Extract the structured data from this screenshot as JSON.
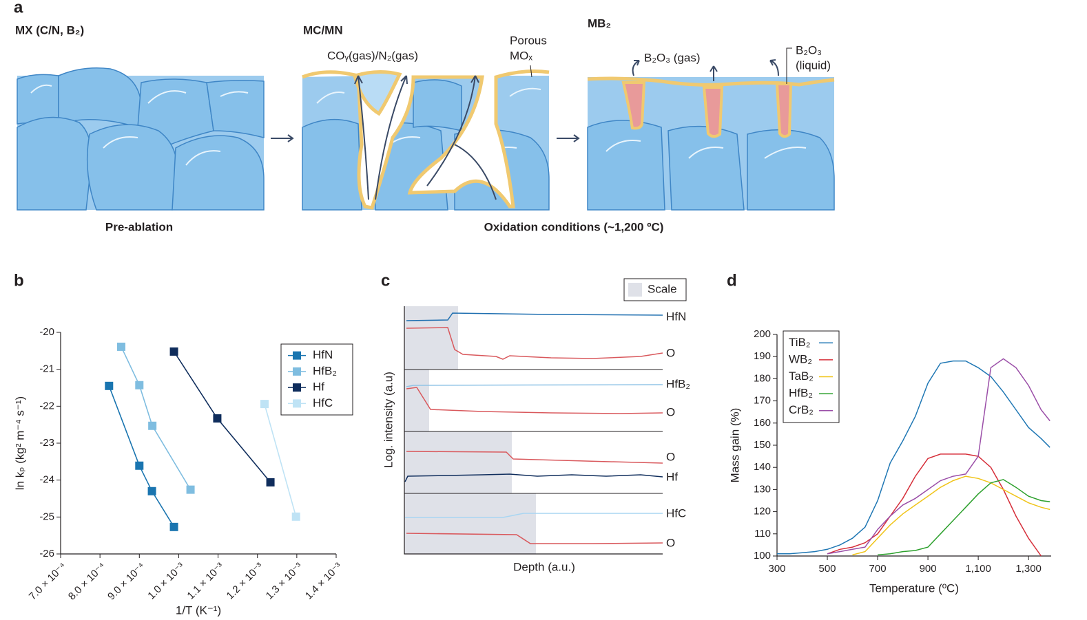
{
  "panel_a": {
    "panel_label": "a",
    "left_title": "MX (C/N, B₂)",
    "middle_title": "MC/MN",
    "right_title": "MB₂",
    "gas_label": "COᵧ(gas)/N₂(gas)",
    "porous_label": [
      "Porous",
      "MOₓ"
    ],
    "boron_gas_label": "B₂O₃ (gas)",
    "boron_liquid_label": [
      "B₂O₃",
      "(liquid)"
    ],
    "pre_label": "Pre-ablation",
    "oxidation_label": "Oxidation conditions (~1,200 ºC)"
  },
  "panel_c": {
    "panel_label": "c",
    "legend": "Scale",
    "y_label": "Log. intensity (a.u)",
    "x_label": "Depth (a.u.)",
    "line_labels": [
      "HfN",
      "O",
      "HfB₂",
      "O",
      "O",
      "Hf",
      "HfC",
      "O"
    ]
  },
  "chart_data": [
    {
      "type": "line",
      "panel_label": "b",
      "markers": true,
      "x_label": "1/T (K⁻¹)",
      "y_label": "ln kₚ (kg² m⁻⁴ s⁻¹)",
      "xlim": [
        0.0007,
        0.0014
      ],
      "ylim": [
        -26,
        -20
      ],
      "xticks": [
        {
          "value": 0.0007,
          "label": "7.0 × 10⁻⁴"
        },
        {
          "value": 0.0008,
          "label": "8.0 × 10⁻⁴"
        },
        {
          "value": 0.0009,
          "label": "9.0 × 10⁻⁴"
        },
        {
          "value": 0.001,
          "label": "1.0 × 10⁻³"
        },
        {
          "value": 0.0011,
          "label": "1.1 × 10⁻³"
        },
        {
          "value": 0.0012,
          "label": "1.2 × 10⁻³"
        },
        {
          "value": 0.0013,
          "label": "1.3 × 10⁻³"
        },
        {
          "value": 0.0014,
          "label": "1.4 × 10⁻³"
        }
      ],
      "yticks": [
        -20,
        -21,
        -22,
        -23,
        -24,
        -25,
        -26
      ],
      "legend": "upper right",
      "series": [
        {
          "name": "HfN",
          "color": "#1a75b0",
          "x": [
            0.000823,
            0.0009,
            0.000932,
            0.000988
          ],
          "values": [
            -21.45,
            -23.61,
            -24.3,
            -25.27
          ]
        },
        {
          "name": "HfB₂",
          "color": "#7fbde0",
          "x": [
            0.000854,
            0.0009,
            0.000933,
            0.00103
          ],
          "values": [
            -20.39,
            -21.43,
            -22.53,
            -24.26
          ]
        },
        {
          "name": "Hf",
          "color": "#0f2d5c",
          "x": [
            0.000988,
            0.001098,
            0.001233
          ],
          "values": [
            -20.52,
            -22.33,
            -24.06
          ]
        },
        {
          "name": "HfC",
          "color": "#bfe3f5",
          "x": [
            0.001218,
            0.001298
          ],
          "values": [
            -21.94,
            -24.99
          ]
        }
      ]
    },
    {
      "type": "line",
      "panel_label": "d",
      "markers": false,
      "x_label": "Temperature (ºC)",
      "y_label": "Mass gain (%)",
      "xlim": [
        300,
        1390
      ],
      "ylim": [
        100,
        200
      ],
      "xticks": [
        300,
        500,
        700,
        900,
        {
          "value": 1100,
          "label": "1,100"
        },
        {
          "value": 1300,
          "label": "1,300"
        }
      ],
      "yticks": [
        100,
        110,
        120,
        130,
        140,
        150,
        160,
        170,
        180,
        190,
        200
      ],
      "legend": "upper left",
      "x": [
        300,
        350,
        400,
        450,
        500,
        550,
        600,
        650,
        700,
        750,
        800,
        850,
        900,
        950,
        1000,
        1050,
        1100,
        1150,
        1200,
        1250,
        1300,
        1350,
        1385
      ],
      "series": [
        {
          "name": "TiB₂",
          "color": "#1f77b4",
          "values": [
            101,
            101,
            101.5,
            102,
            103,
            105,
            108,
            113,
            125,
            142,
            152,
            163,
            178,
            187,
            188,
            188,
            185,
            181,
            174,
            166,
            158,
            153,
            149
          ]
        },
        {
          "name": "WB₂",
          "color": "#d62f3a",
          "values": [
            null,
            null,
            null,
            null,
            101,
            103,
            104,
            106,
            110,
            118,
            126,
            136,
            144,
            146,
            146,
            146,
            145,
            140,
            130,
            118,
            108,
            100,
            null
          ]
        },
        {
          "name": "TaB₂",
          "color": "#f0c419",
          "values": [
            null,
            null,
            null,
            null,
            null,
            null,
            100.5,
            102,
            108,
            114,
            119,
            123,
            127,
            131,
            134,
            136,
            135,
            133,
            130,
            127,
            124,
            122,
            121
          ]
        },
        {
          "name": "HfB₂",
          "color": "#2ca02c",
          "values": [
            null,
            null,
            null,
            null,
            null,
            null,
            null,
            null,
            100.5,
            101,
            102,
            102.5,
            104,
            110,
            116,
            122,
            128,
            133,
            134.5,
            131,
            127,
            125,
            124.5
          ]
        },
        {
          "name": "CrB₂",
          "color": "#9b4fa8",
          "values": [
            null,
            null,
            null,
            null,
            101,
            102,
            103,
            104,
            112,
            118,
            123,
            126,
            130,
            134,
            136,
            137,
            145,
            185,
            189,
            185,
            177,
            166,
            161
          ]
        }
      ]
    }
  ]
}
